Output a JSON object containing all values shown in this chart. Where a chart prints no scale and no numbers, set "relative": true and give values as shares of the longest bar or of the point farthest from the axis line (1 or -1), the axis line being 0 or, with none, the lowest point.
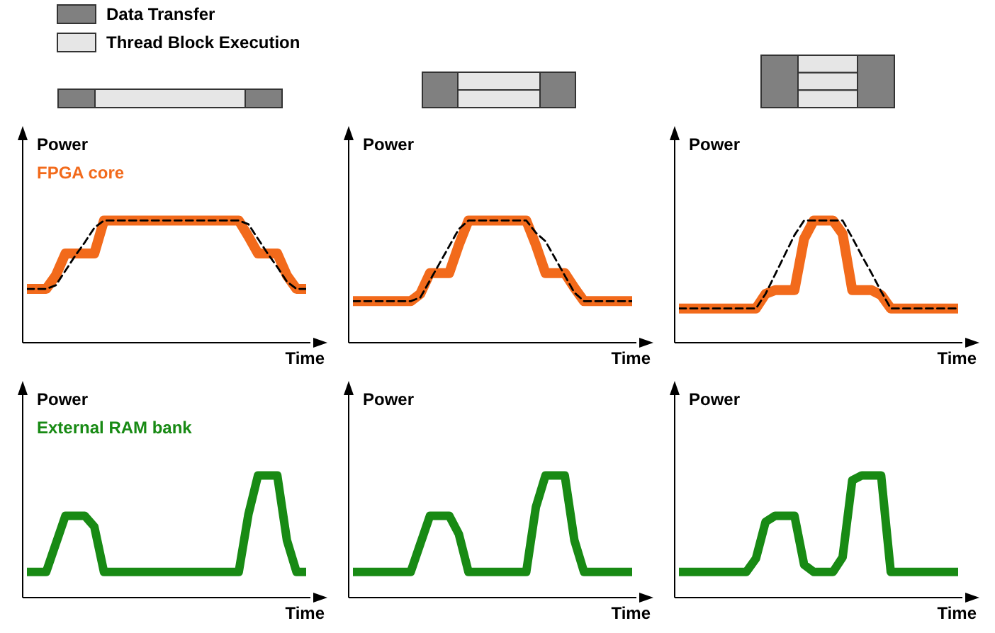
{
  "chart_data": [
    {
      "type": "line",
      "relative": true,
      "tick_labels": false,
      "ylabel": "Power",
      "xlabel": "Time",
      "annotations": [
        "Data Transfer",
        "Thread Block Execution"
      ],
      "categories": [
        null,
        null,
        null,
        null,
        null,
        null,
        null,
        null,
        null,
        null,
        null,
        null,
        null,
        null,
        null,
        null,
        null,
        null,
        null,
        null,
        null,
        null,
        null,
        null,
        null,
        null,
        null,
        null,
        null,
        null
      ],
      "series": [
        {
          "name": "FPGA core",
          "color": "#f26a1b",
          "values": [
            0.44,
            0.44,
            0.44,
            0.55,
            0.73,
            0.73,
            0.73,
            0.73,
            1,
            1,
            1,
            1,
            1,
            1,
            1,
            1,
            1,
            1,
            1,
            1,
            1,
            1,
            1,
            0.87,
            0.73,
            0.73,
            0.73,
            0.55,
            0.44,
            0.44
          ]
        },
        {
          "color": "#000000",
          "line_style": "dashed",
          "values": [
            0.44,
            0.44,
            0.44,
            0.47,
            0.59,
            0.71,
            0.82,
            0.94,
            1,
            1,
            1,
            1,
            1,
            1,
            1,
            1,
            1,
            1,
            1,
            1,
            1,
            1,
            1,
            0.97,
            0.85,
            0.73,
            0.62,
            0.5,
            0.44,
            0.44
          ]
        }
      ]
    },
    {
      "type": "line",
      "relative": true,
      "tick_labels": false,
      "ylabel": "Power",
      "xlabel": "Time",
      "categories": [
        null,
        null,
        null,
        null,
        null,
        null,
        null,
        null,
        null,
        null,
        null,
        null,
        null,
        null,
        null,
        null,
        null,
        null,
        null,
        null,
        null,
        null,
        null,
        null,
        null,
        null,
        null,
        null,
        null,
        null
      ],
      "series": [
        {
          "color": "#f26a1b",
          "values": [
            0.34,
            0.34,
            0.34,
            0.34,
            0.34,
            0.34,
            0.34,
            0.4,
            0.57,
            0.57,
            0.57,
            0.8,
            1,
            1,
            1,
            1,
            1,
            1,
            1,
            0.8,
            0.57,
            0.57,
            0.57,
            0.45,
            0.34,
            0.34,
            0.34,
            0.34,
            0.34,
            0.34
          ]
        },
        {
          "color": "#000000",
          "line_style": "dashed",
          "values": [
            0.34,
            0.34,
            0.34,
            0.34,
            0.34,
            0.34,
            0.34,
            0.37,
            0.51,
            0.65,
            0.79,
            0.93,
            1,
            1,
            1,
            1,
            1,
            1,
            1,
            0.9,
            0.83,
            0.69,
            0.55,
            0.41,
            0.34,
            0.34,
            0.34,
            0.34,
            0.34,
            0.34
          ]
        }
      ]
    },
    {
      "type": "line",
      "relative": true,
      "tick_labels": false,
      "ylabel": "Power",
      "xlabel": "Time",
      "categories": [
        null,
        null,
        null,
        null,
        null,
        null,
        null,
        null,
        null,
        null,
        null,
        null,
        null,
        null,
        null,
        null,
        null,
        null,
        null,
        null,
        null,
        null,
        null,
        null,
        null,
        null,
        null,
        null,
        null,
        null
      ],
      "series": [
        {
          "color": "#f26a1b",
          "values": [
            0.28,
            0.28,
            0.28,
            0.28,
            0.28,
            0.28,
            0.28,
            0.28,
            0.28,
            0.4,
            0.43,
            0.43,
            0.43,
            0.85,
            1,
            1,
            1,
            0.89,
            0.43,
            0.43,
            0.43,
            0.39,
            0.28,
            0.28,
            0.28,
            0.28,
            0.28,
            0.28,
            0.28,
            0.28
          ]
        },
        {
          "color": "#000000",
          "line_style": "dashed",
          "values": [
            0.28,
            0.28,
            0.28,
            0.28,
            0.28,
            0.28,
            0.28,
            0.28,
            0.28,
            0.4,
            0.56,
            0.72,
            0.88,
            1,
            1,
            1,
            1,
            1,
            0.86,
            0.71,
            0.57,
            0.42,
            0.28,
            0.28,
            0.28,
            0.28,
            0.28,
            0.28,
            0.28,
            0.28
          ]
        }
      ]
    },
    {
      "type": "line",
      "relative": true,
      "tick_labels": false,
      "ylabel": "Power",
      "xlabel": "Time",
      "categories": [
        null,
        null,
        null,
        null,
        null,
        null,
        null,
        null,
        null,
        null,
        null,
        null,
        null,
        null,
        null,
        null,
        null,
        null,
        null,
        null,
        null,
        null,
        null,
        null,
        null,
        null,
        null,
        null,
        null,
        null
      ],
      "series": [
        {
          "name": "External RAM bank",
          "color": "#188a14",
          "values": [
            0.21,
            0.21,
            0.21,
            0.44,
            0.67,
            0.67,
            0.67,
            0.58,
            0.21,
            0.21,
            0.21,
            0.21,
            0.21,
            0.21,
            0.21,
            0.21,
            0.21,
            0.21,
            0.21,
            0.21,
            0.21,
            0.21,
            0.21,
            0.68,
            1,
            1,
            1,
            0.47,
            0.21,
            0.21
          ]
        }
      ]
    },
    {
      "type": "line",
      "relative": true,
      "tick_labels": false,
      "ylabel": "Power",
      "xlabel": "Time",
      "categories": [
        null,
        null,
        null,
        null,
        null,
        null,
        null,
        null,
        null,
        null,
        null,
        null,
        null,
        null,
        null,
        null,
        null,
        null,
        null,
        null,
        null,
        null,
        null,
        null,
        null,
        null,
        null,
        null,
        null,
        null
      ],
      "series": [
        {
          "color": "#188a14",
          "values": [
            0.21,
            0.21,
            0.21,
            0.21,
            0.21,
            0.21,
            0.21,
            0.44,
            0.67,
            0.67,
            0.67,
            0.52,
            0.21,
            0.21,
            0.21,
            0.21,
            0.21,
            0.21,
            0.21,
            0.74,
            1,
            1,
            1,
            0.47,
            0.21,
            0.21,
            0.21,
            0.21,
            0.21,
            0.21
          ]
        }
      ]
    },
    {
      "type": "line",
      "relative": true,
      "tick_labels": false,
      "ylabel": "Power",
      "xlabel": "Time",
      "categories": [
        null,
        null,
        null,
        null,
        null,
        null,
        null,
        null,
        null,
        null,
        null,
        null,
        null,
        null,
        null,
        null,
        null,
        null,
        null,
        null,
        null,
        null,
        null,
        null,
        null,
        null,
        null,
        null,
        null,
        null
      ],
      "series": [
        {
          "color": "#188a14",
          "values": [
            0.21,
            0.21,
            0.21,
            0.21,
            0.21,
            0.21,
            0.21,
            0.21,
            0.32,
            0.62,
            0.67,
            0.67,
            0.67,
            0.27,
            0.21,
            0.21,
            0.21,
            0.33,
            0.96,
            1,
            1,
            1,
            0.21,
            0.21,
            0.21,
            0.21,
            0.21,
            0.21,
            0.21,
            0.21
          ]
        }
      ]
    }
  ]
}
